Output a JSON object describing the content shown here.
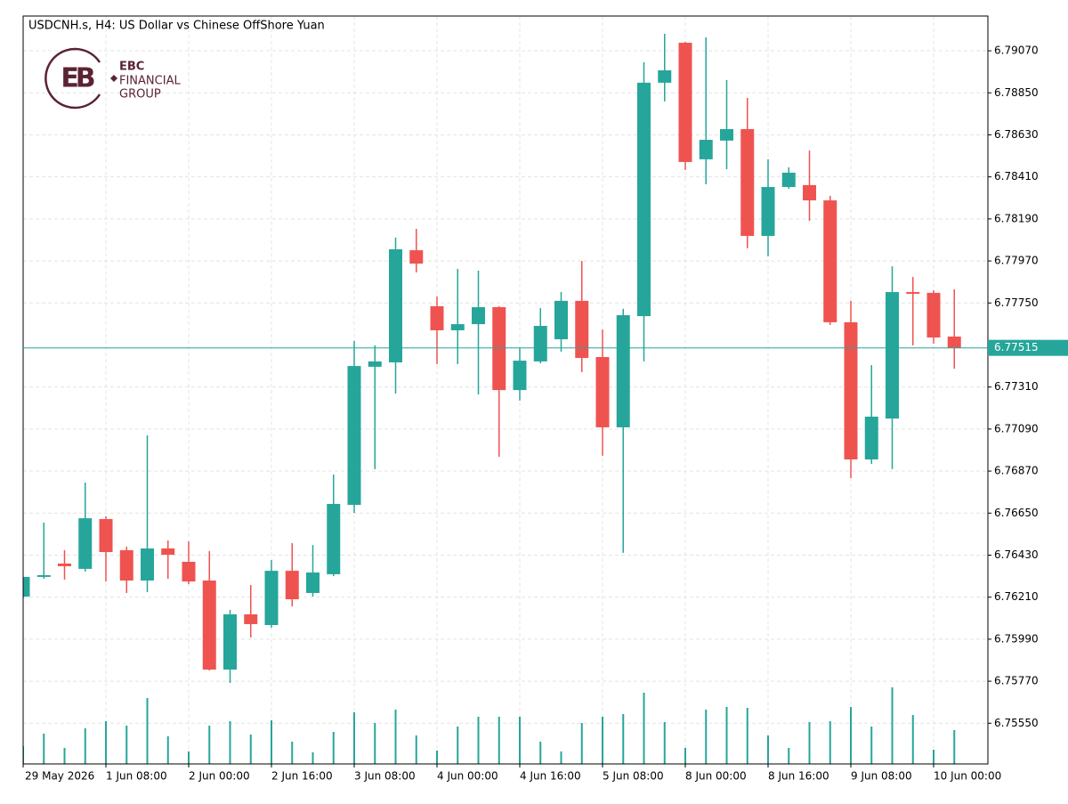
{
  "chart_data": {
    "type": "candlestick",
    "title": "USDCNH.s, H4:  US Dollar vs Chinese OffShore Yuan",
    "logo": {
      "mark": "EB",
      "lines": [
        "EBC",
        "FINANCIAL",
        "GROUP"
      ]
    },
    "categories": [
      "29 May 2026",
      null,
      null,
      null,
      "1 Jun 08:00",
      null,
      null,
      null,
      "2 Jun 00:00",
      null,
      null,
      null,
      "2 Jun 16:00",
      null,
      null,
      null,
      "3 Jun 08:00",
      null,
      null,
      null,
      "4 Jun 00:00",
      null,
      null,
      null,
      "4 Jun 16:00",
      null,
      null,
      null,
      "5 Jun 08:00",
      null,
      null,
      null,
      "8 Jun 00:00",
      null,
      null,
      null,
      "8 Jun 16:00",
      null,
      null,
      null,
      "9 Jun 08:00",
      null,
      null,
      null,
      "10 Jun 00:00",
      null
    ],
    "open": [
      6.76213,
      6.76316,
      6.76386,
      6.76358,
      6.76619,
      6.76456,
      6.76297,
      6.76465,
      6.76395,
      6.76297,
      6.75831,
      6.7612,
      6.76064,
      6.76348,
      6.76232,
      6.7633,
      6.76693,
      6.77416,
      6.77439,
      6.78026,
      6.77733,
      6.77607,
      6.77639,
      6.77728,
      6.77294,
      6.77444,
      6.7756,
      6.77761,
      6.77467,
      6.77099,
      6.77681,
      6.78903,
      6.79112,
      6.78502,
      6.786,
      6.7866,
      6.78101,
      6.78357,
      6.78367,
      6.78287,
      6.77649,
      6.76931,
      6.77145,
      6.77807,
      6.77803,
      6.77574
    ],
    "high": [
      6.76316,
      6.766,
      6.76456,
      6.7681,
      6.76633,
      6.76474,
      6.77057,
      6.76507,
      6.76502,
      6.76451,
      6.76143,
      6.76274,
      6.76404,
      6.76493,
      6.76483,
      6.76852,
      6.77551,
      6.77528,
      6.78092,
      6.78138,
      6.77784,
      6.77928,
      6.77919,
      6.77733,
      6.77514,
      6.77723,
      6.77807,
      6.7797,
      6.77611,
      6.77719,
      6.7901,
      6.79159,
      6.79117,
      6.7914,
      6.78917,
      6.78823,
      6.78502,
      6.7846,
      6.78548,
      6.78311,
      6.77761,
      6.77425,
      6.77942,
      6.77886,
      6.77817,
      6.77821
    ],
    "low": [
      6.76204,
      6.76306,
      6.76302,
      6.76344,
      6.76292,
      6.76232,
      6.76236,
      6.76306,
      6.76278,
      6.75826,
      6.75761,
      6.75999,
      6.7605,
      6.76162,
      6.76213,
      6.7632,
      6.76651,
      6.7688,
      6.77276,
      6.7791,
      6.7743,
      6.7743,
      6.77271,
      6.76945,
      6.77239,
      6.77434,
      6.77495,
      6.77388,
      6.7695,
      6.76442,
      6.77444,
      6.78805,
      6.78446,
      6.78371,
      6.7845,
      6.78036,
      6.77994,
      6.78348,
      6.7818,
      6.77635,
      6.76833,
      6.76908,
      6.7688,
      6.77528,
      6.77537,
      6.77406
    ],
    "close": [
      6.76316,
      6.76325,
      6.76372,
      6.76623,
      6.76446,
      6.76297,
      6.76465,
      6.76432,
      6.76292,
      6.75831,
      6.7612,
      6.76069,
      6.76348,
      6.76199,
      6.76339,
      6.76698,
      6.7742,
      6.77444,
      6.78031,
      6.77956,
      6.77607,
      6.77639,
      6.77728,
      6.77294,
      6.77448,
      6.7763,
      6.77761,
      6.77462,
      6.77099,
      6.77686,
      6.78903,
      6.78968,
      6.78488,
      6.78604,
      6.7866,
      6.78101,
      6.78357,
      6.78432,
      6.78287,
      6.77649,
      6.76931,
      6.77155,
      6.77807,
      6.77798,
      6.77569,
      6.77515
    ],
    "volume": [
      20,
      34,
      18,
      40,
      48,
      43,
      74,
      31,
      14,
      43,
      48,
      33,
      49,
      25,
      13,
      36,
      58,
      46,
      61,
      32,
      15,
      42,
      53,
      53,
      53,
      25,
      14,
      46,
      53,
      56,
      80,
      47,
      18,
      61,
      64,
      63,
      32,
      18,
      47,
      48,
      64,
      42,
      86,
      55,
      16,
      38
    ],
    "up_color": "#26a69a",
    "down_color": "#ef5350",
    "volume_color": "#26a69a",
    "last_price": 6.77515,
    "last_price_color": "#26a69a",
    "ylim": [
      6.75337,
      6.79252
    ],
    "yticks": [
      {
        "value": 6.7555,
        "label": "6.75550"
      },
      {
        "value": 6.7577,
        "label": "6.75770"
      },
      {
        "value": 6.7599,
        "label": "6.75990"
      },
      {
        "value": 6.7621,
        "label": "6.76210"
      },
      {
        "value": 6.7643,
        "label": "6.76430"
      },
      {
        "value": 6.7665,
        "label": "6.76650"
      },
      {
        "value": 6.7687,
        "label": "6.76870"
      },
      {
        "value": 6.7709,
        "label": "6.77090"
      },
      {
        "value": 6.7731,
        "label": "6.77310"
      },
      {
        "value": 6.7775,
        "label": "6.77750"
      },
      {
        "value": 6.7797,
        "label": "6.77970"
      },
      {
        "value": 6.7819,
        "label": "6.78190"
      },
      {
        "value": 6.7841,
        "label": "6.78410"
      },
      {
        "value": 6.7863,
        "label": "6.78630"
      },
      {
        "value": 6.7885,
        "label": "6.78850"
      },
      {
        "value": 6.7907,
        "label": "6.79070"
      }
    ],
    "grid": true
  }
}
